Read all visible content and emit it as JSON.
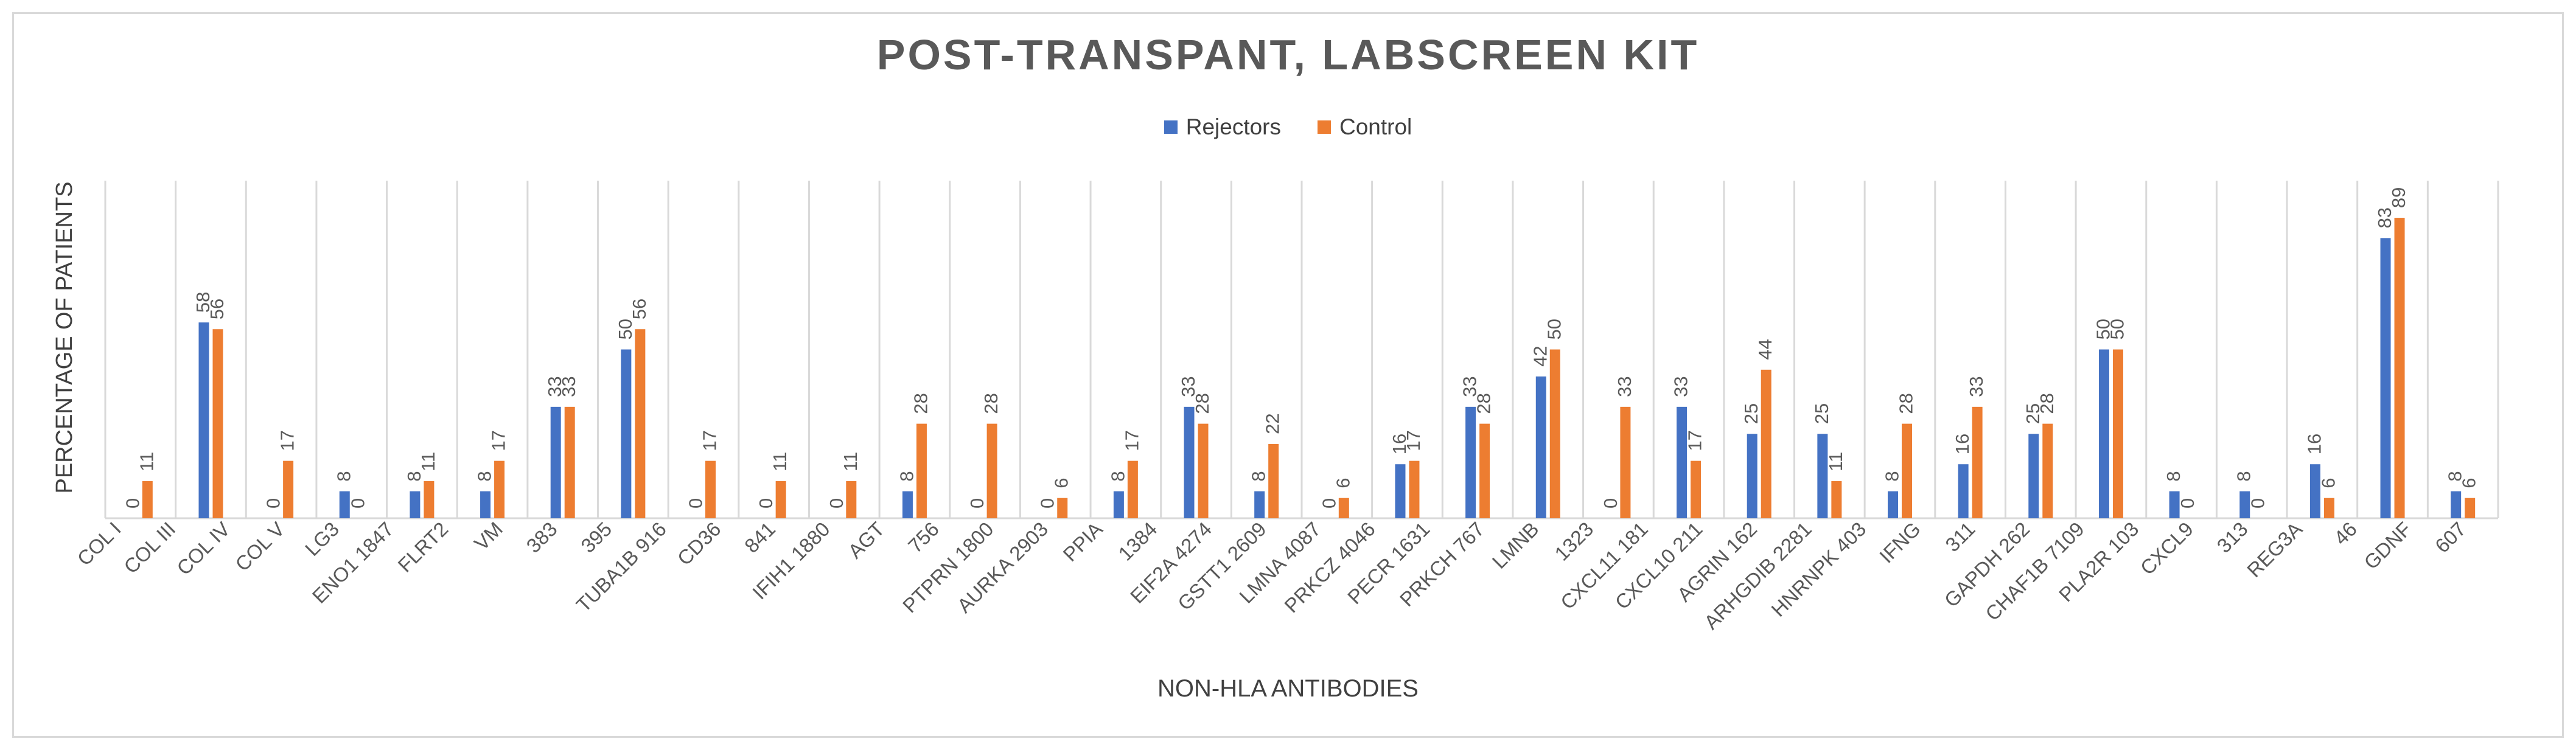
{
  "chart_data": {
    "type": "bar",
    "title": "POST-TRANSPANT, LABSCREEN KIT",
    "xlabel": "NON-HLA ANTIBODIES",
    "ylabel": "PERCENTAGE OF PATIENTS",
    "ylim": [
      0,
      100
    ],
    "grid": "vertical category separators",
    "legend_position": "top-center",
    "categories": [
      "COL I",
      "COL III",
      "COL IV",
      "COL V",
      "LG3",
      "ENO1 1847",
      "FLRT2",
      "VM",
      "383",
      "395",
      "TUBA1B 916",
      "CD36",
      "841",
      "IFIH1 1880",
      "AGT",
      "756",
      "PTPRN 1800",
      "AURKA 2903",
      "PPIA",
      "1384",
      "EIF2A 4274",
      "GSTT1 2609",
      "LMNA 4087",
      "PRKCZ 4046",
      "PECR 1631",
      "PRKCH 767",
      "LMNB",
      "1323",
      "CXCL11 181",
      "CXCL10 211",
      "AGRIN 162",
      "ARHGDIB 2281",
      "HNRNPK 403",
      "IFNG",
      "311",
      "GAPDH 262",
      "CHAF1B 7109",
      "PLA2R 103",
      "CXCL9",
      "313",
      "REG3A",
      "46",
      "GDNF",
      "607"
    ],
    "groups": [
      {
        "label": "COL I",
        "rej": 0,
        "ctl": 11
      },
      {
        "label": "COL III",
        "rej": 58,
        "ctl": 56
      },
      {
        "label": "COL IV",
        "rej": 0,
        "ctl": 17
      },
      {
        "label": "COL V",
        "rej": 8,
        "ctl": 0
      },
      {
        "label": "LG3",
        "rej": 8,
        "ctl": 11
      },
      {
        "label": "ENO1 1847 / FLRT2",
        "rej": 8,
        "ctl": 17
      },
      {
        "label": "383 / VM",
        "rej": 33,
        "ctl": 33
      },
      {
        "label": "395",
        "rej": 50,
        "ctl": 56
      },
      {
        "label": "TUBA1B 916",
        "rej": 0,
        "ctl": 17
      },
      {
        "label": "CD36 / 841",
        "rej": 0,
        "ctl": 11
      },
      {
        "label": "IFIH1 1880",
        "rej": 0,
        "ctl": 11
      },
      {
        "label": "AGT / 756",
        "rej": 8,
        "ctl": 28
      },
      {
        "label": "PTPRN 1800",
        "rej": 0,
        "ctl": 28
      },
      {
        "label": "AURKA 2903",
        "rej": 0,
        "ctl": 6
      },
      {
        "label": "PPIA / 1384",
        "rej": 8,
        "ctl": 17
      },
      {
        "label": "EIF2A 4274",
        "rej": 33,
        "ctl": 28
      },
      {
        "label": "GSTT1 2609",
        "rej": 8,
        "ctl": 22
      },
      {
        "label": "LMNA 4087",
        "rej": 0,
        "ctl": 6
      },
      {
        "label": "PRKCZ 4046",
        "rej": 16,
        "ctl": 17
      },
      {
        "label": "PECR 1631",
        "rej": 33,
        "ctl": 28
      },
      {
        "label": "PRKCH 767",
        "rej": 42,
        "ctl": 50
      },
      {
        "label": "LMNB / 1323",
        "rej": 0,
        "ctl": 33
      },
      {
        "label": "CXCL11 181",
        "rej": 33,
        "ctl": 17
      },
      {
        "label": "CXCL10 211",
        "rej": 25,
        "ctl": 44
      },
      {
        "label": "AGRIN 162",
        "rej": 25,
        "ctl": 11
      },
      {
        "label": "ARHGDIB 2281",
        "rej": 8,
        "ctl": 28
      },
      {
        "label": "HNRNPK 403",
        "rej": 16,
        "ctl": 33
      },
      {
        "label": "IFNG / 311",
        "rej": 25,
        "ctl": 28
      },
      {
        "label": "GAPDH 262",
        "rej": 50,
        "ctl": 50
      },
      {
        "label": "CHAF1B 7109",
        "rej": 8,
        "ctl": 0
      },
      {
        "label": "PLA2R 103",
        "rej": 8,
        "ctl": 0
      },
      {
        "label": "CXCL9 / 313",
        "rej": 16,
        "ctl": 6
      },
      {
        "label": "REG3A / 46",
        "rej": 83,
        "ctl": 89
      },
      {
        "label": "GDNF / 607",
        "rej": 8,
        "ctl": 6
      }
    ],
    "series": [
      {
        "name": "Rejectors",
        "color": "#4472c4"
      },
      {
        "name": "Control",
        "color": "#ed7d31"
      }
    ]
  }
}
